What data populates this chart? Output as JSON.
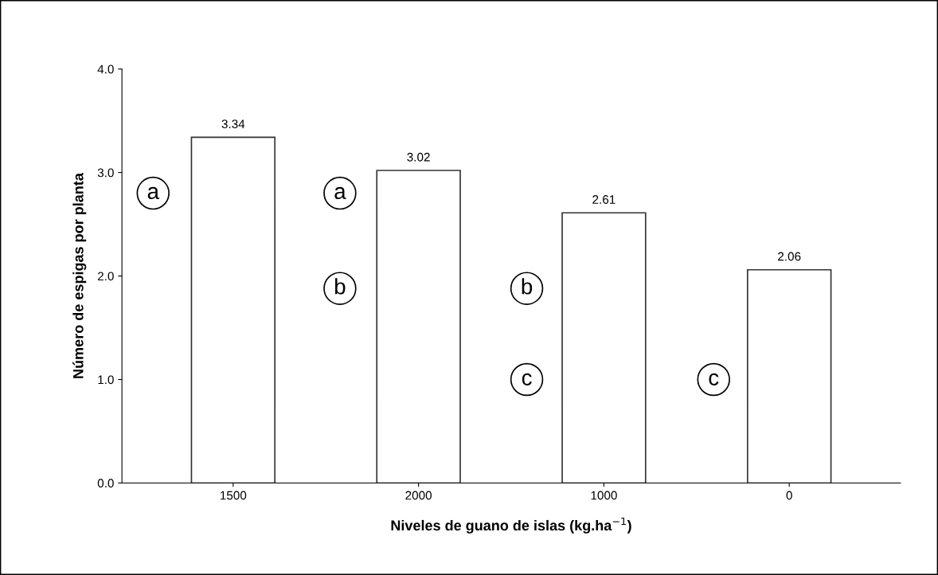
{
  "chart_data": {
    "type": "bar",
    "xlabel": "Niveles de guano de islas (kg.ha$^{−1}$)",
    "ylabel": "Número de espigas por planta",
    "categories": [
      "1500",
      "2000",
      "1000",
      "0"
    ],
    "values": [
      3.34,
      3.02,
      2.61,
      2.06
    ],
    "color": "#ffffff",
    "data_labels": true,
    "ylim": [
      0,
      4
    ],
    "yticks": [
      {
        "value": 0,
        "label": "0.0"
      },
      {
        "value": 1,
        "label": "1.0"
      },
      {
        "value": 2,
        "label": "2.0"
      },
      {
        "value": 3,
        "label": "3.0"
      },
      {
        "value": 4,
        "label": "4.0"
      }
    ],
    "grid": false,
    "annotations": [
      "a",
      "a",
      "b",
      "b",
      "c",
      "c"
    ]
  }
}
